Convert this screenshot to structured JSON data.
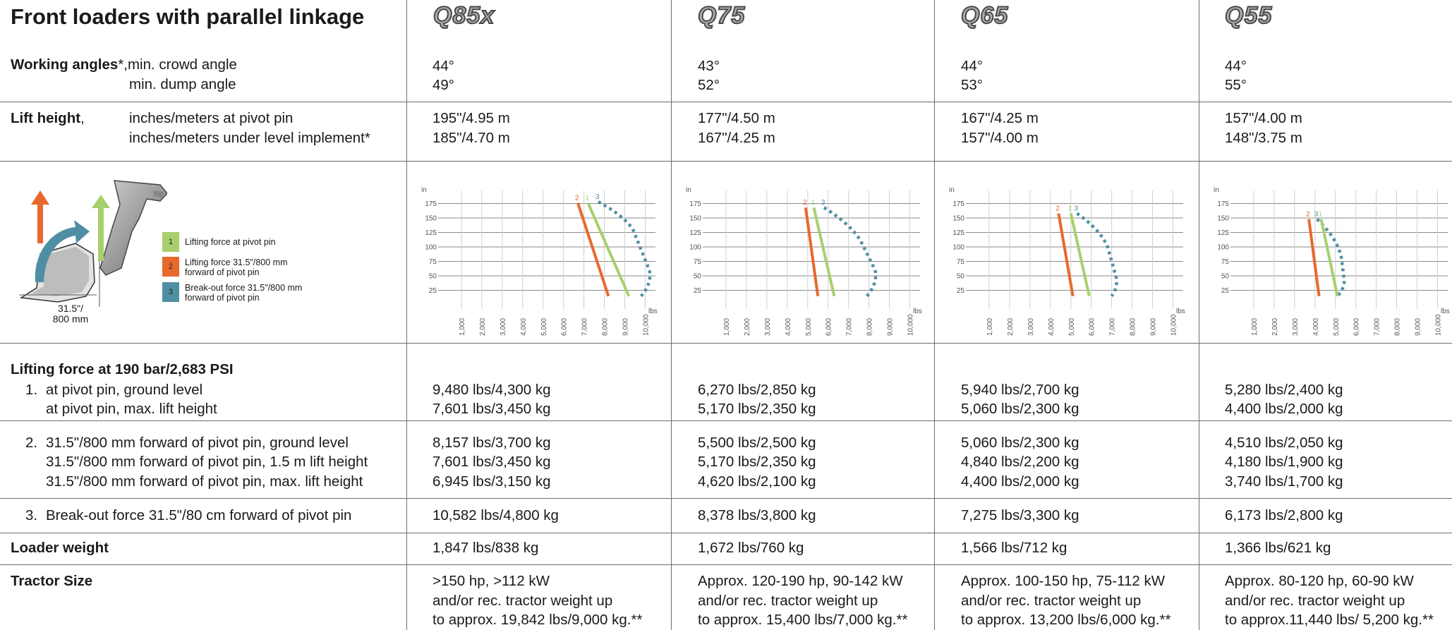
{
  "header": {
    "title": "Front loaders with parallel linkage"
  },
  "models": [
    {
      "logo": "Q85x"
    },
    {
      "logo": "Q75"
    },
    {
      "logo": "Q65"
    },
    {
      "logo": "Q55"
    }
  ],
  "rows": {
    "working_angles": {
      "label": "Working angles",
      "suffix": "*,",
      "sub1": "min. crowd angle",
      "sub2": "min. dump angle",
      "values": [
        [
          "44°",
          "49°"
        ],
        [
          "43°",
          "52°"
        ],
        [
          "44°",
          "53°"
        ],
        [
          "44°",
          "55°"
        ]
      ]
    },
    "lift_height": {
      "label": "Lift height",
      "suffix": ",",
      "sub1": "inches/meters at pivot pin",
      "sub2": "inches/meters under level implement*",
      "values": [
        [
          "195\"/4.95 m",
          "185\"/4.70 m"
        ],
        [
          "177\"/4.50 m",
          "167\"/4.25 m"
        ],
        [
          "167\"/4.25 m",
          "157\"/4.00 m"
        ],
        [
          "157\"/4.00 m",
          "148\"/3.75 m"
        ]
      ]
    },
    "lifting_force": {
      "title": "Lifting force at 190 bar/2,683 PSI",
      "g1": {
        "num": "1.",
        "line1": "at pivot pin, ground level",
        "line2": "at pivot pin, max. lift height",
        "values": [
          [
            "9,480 lbs/4,300 kg",
            "7,601 lbs/3,450 kg"
          ],
          [
            "6,270 lbs/2,850 kg",
            "5,170 lbs/2,350 kg"
          ],
          [
            "5,940 lbs/2,700 kg",
            "5,060 lbs/2,300 kg"
          ],
          [
            "5,280 lbs/2,400 kg",
            "4,400 lbs/2,000 kg"
          ]
        ]
      },
      "g2": {
        "num": "2.",
        "line1": "31.5\"/800 mm forward of pivot pin, ground level",
        "line2": "31.5\"/800 mm forward of pivot pin, 1.5 m lift height",
        "line3": "31.5\"/800 mm forward of pivot pin, max. lift height",
        "values": [
          [
            "8,157 lbs/3,700 kg",
            "7,601 lbs/3,450 kg",
            "6,945 lbs/3,150 kg"
          ],
          [
            "5,500 lbs/2,500 kg",
            "5,170 lbs/2,350 kg",
            "4,620 lbs/2,100 kg"
          ],
          [
            "5,060 lbs/2,300 kg",
            "4,840 lbs/2,200 kg",
            "4,400 lbs/2,000 kg"
          ],
          [
            "4,510 lbs/2,050 kg",
            "4,180 lbs/1,900 kg",
            "3,740 lbs/1,700 kg"
          ]
        ]
      },
      "g3": {
        "num": "3.",
        "line1": "Break-out force 31.5\"/80 cm forward of pivot pin",
        "values": [
          "10,582 lbs/4,800 kg",
          "8,378 lbs/3,800 kg",
          "7,275 lbs/3,300 kg",
          "6,173 lbs/2,800 kg"
        ]
      }
    },
    "loader_weight": {
      "label": "Loader weight",
      "values": [
        "1,847 lbs/838 kg",
        "1,672 lbs/760 kg",
        "1,566 lbs/712 kg",
        "1,366 lbs/621 kg"
      ]
    },
    "tractor_size": {
      "label": "Tractor Size",
      "values": [
        [
          ">150 hp, >112 kW",
          "and/or rec. tractor weight up",
          "to approx. 19,842 lbs/9,000 kg.**"
        ],
        [
          "Approx. 120-190 hp, 90-142 kW",
          "and/or rec. tractor weight up",
          "to approx. 15,400 lbs/7,000 kg.**"
        ],
        [
          "Approx. 100-150 hp, 75-112 kW",
          "and/or rec. tractor weight up",
          "to approx. 13,200 lbs/6,000 kg.**"
        ],
        [
          "Approx. 80-120 hp, 60-90 kW",
          "and/or rec. tractor weight up",
          "to approx.11,440 lbs/ 5,200 kg.**"
        ]
      ]
    }
  },
  "legend": {
    "items": [
      {
        "num": "1",
        "text1": "Lifting force at pivot pin",
        "text2": "",
        "color": "#a8cf6e"
      },
      {
        "num": "2",
        "text1": "Lifting force 31.5\"/800 mm",
        "text2": "forward of pivot pin",
        "color": "#e8692c"
      },
      {
        "num": "3",
        "text1": "Break-out force 31.5\"/800 mm",
        "text2": "forward of pivot pin",
        "color": "#4f8fa3"
      }
    ],
    "illustration_label1": "31.5\"/",
    "illustration_label2": "800 mm"
  },
  "chart_data": [
    {
      "type": "line",
      "model": "Q85x",
      "ylabel": "in",
      "xlabel": "lbs",
      "x_ticks": [
        "1,000",
        "2,000",
        "3,000",
        "4,000",
        "5,000",
        "6,000",
        "7,000",
        "8,000",
        "9,000",
        "10,000"
      ],
      "y_ticks": [
        25,
        50,
        75,
        100,
        125,
        150,
        175
      ],
      "xlim": [
        0,
        10500
      ],
      "ylim": [
        0,
        200
      ],
      "series": [
        {
          "name": "2",
          "color": "#e8692c",
          "style": "solid",
          "points": [
            [
              6700,
              176
            ],
            [
              8200,
              15
            ]
          ]
        },
        {
          "name": "1",
          "color": "#a8cf6e",
          "style": "solid",
          "points": [
            [
              7200,
              176
            ],
            [
              9200,
              15
            ]
          ]
        },
        {
          "name": "3",
          "color": "#4f8fa3",
          "style": "dotted",
          "points": [
            [
              7700,
              178
            ],
            [
              9400,
              130
            ],
            [
              10200,
              60
            ],
            [
              9800,
              15
            ]
          ]
        }
      ]
    },
    {
      "type": "line",
      "model": "Q75",
      "ylabel": "in",
      "xlabel": "lbs",
      "x_ticks": [
        "1,000",
        "2,000",
        "3,000",
        "4,000",
        "5,000",
        "6,000",
        "7,000",
        "8,000",
        "9,000",
        "10,000"
      ],
      "y_ticks": [
        25,
        50,
        75,
        100,
        125,
        150,
        175
      ],
      "xlim": [
        0,
        10500
      ],
      "ylim": [
        0,
        200
      ],
      "series": [
        {
          "name": "2",
          "color": "#e8692c",
          "style": "solid",
          "points": [
            [
              4900,
              168
            ],
            [
              5500,
              15
            ]
          ]
        },
        {
          "name": "1",
          "color": "#a8cf6e",
          "style": "solid",
          "points": [
            [
              5300,
              168
            ],
            [
              6300,
              15
            ]
          ]
        },
        {
          "name": "3",
          "color": "#4f8fa3",
          "style": "dotted",
          "points": [
            [
              5800,
              168
            ],
            [
              7600,
              110
            ],
            [
              8300,
              60
            ],
            [
              7900,
              15
            ]
          ]
        }
      ]
    },
    {
      "type": "line",
      "model": "Q65",
      "ylabel": "in",
      "xlabel": "lbs",
      "x_ticks": [
        "1,000",
        "2,000",
        "3,000",
        "4,000",
        "5,000",
        "6,000",
        "7,000",
        "8,000",
        "9,000",
        "10,000"
      ],
      "y_ticks": [
        25,
        50,
        75,
        100,
        125,
        150,
        175
      ],
      "xlim": [
        0,
        10500
      ],
      "ylim": [
        0,
        200
      ],
      "series": [
        {
          "name": "2",
          "color": "#e8692c",
          "style": "solid",
          "points": [
            [
              4400,
              158
            ],
            [
              5100,
              15
            ]
          ]
        },
        {
          "name": "1",
          "color": "#a8cf6e",
          "style": "solid",
          "points": [
            [
              5000,
              158
            ],
            [
              5900,
              15
            ]
          ]
        },
        {
          "name": "3",
          "color": "#4f8fa3",
          "style": "dotted",
          "points": [
            [
              5300,
              158
            ],
            [
              6800,
              100
            ],
            [
              7200,
              50
            ],
            [
              7000,
              15
            ]
          ]
        }
      ]
    },
    {
      "type": "line",
      "model": "Q55",
      "ylabel": "in",
      "xlabel": "lbs",
      "x_ticks": [
        "1,000",
        "2,000",
        "3,000",
        "4,000",
        "5,000",
        "6,000",
        "7,000",
        "8,000",
        "9,000",
        "10,000"
      ],
      "y_ticks": [
        25,
        50,
        75,
        100,
        125,
        150,
        175
      ],
      "xlim": [
        0,
        10500
      ],
      "ylim": [
        0,
        200
      ],
      "series": [
        {
          "name": "2",
          "color": "#e8692c",
          "style": "solid",
          "points": [
            [
              3700,
              148
            ],
            [
              4200,
              15
            ]
          ]
        },
        {
          "name": "3",
          "color": "#4f8fa3",
          "style": "dotted",
          "points": [
            [
              4100,
              148
            ],
            [
              5300,
              80
            ],
            [
              5400,
              50
            ],
            [
              5100,
              15
            ]
          ]
        },
        {
          "name": "1",
          "color": "#a8cf6e",
          "style": "solid",
          "points": [
            [
              4300,
              148
            ],
            [
              5100,
              15
            ]
          ]
        }
      ]
    }
  ]
}
